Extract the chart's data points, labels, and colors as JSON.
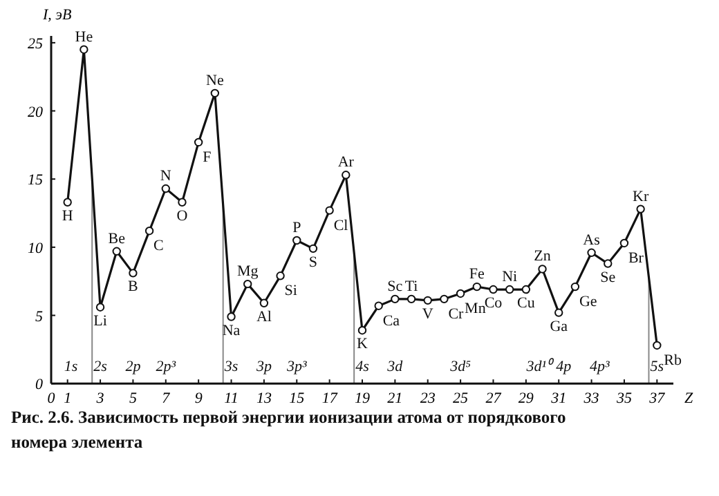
{
  "chart_data": {
    "type": "line",
    "xlabel": "Z",
    "ylabel": "I, эВ",
    "xlim": [
      0,
      38
    ],
    "ylim": [
      0,
      25.5
    ],
    "xticks": [
      0,
      1,
      3,
      5,
      7,
      9,
      11,
      13,
      15,
      17,
      19,
      21,
      23,
      25,
      27,
      29,
      31,
      33,
      35,
      37
    ],
    "yticks": [
      0,
      5,
      10,
      15,
      20,
      25
    ],
    "grid": false,
    "marker": "circle",
    "line_style": "solid",
    "series": [
      {
        "color": "#111111",
        "x": [
          1,
          2,
          3,
          4,
          5,
          6,
          7,
          8,
          9,
          10,
          11,
          12,
          13,
          14,
          15,
          16,
          17,
          18,
          19,
          20,
          21,
          22,
          23,
          24,
          25,
          26,
          27,
          28,
          29,
          30,
          31,
          32,
          33,
          34,
          35,
          36,
          37
        ],
        "values": [
          13.3,
          24.5,
          5.6,
          9.7,
          8.1,
          11.2,
          14.3,
          13.3,
          17.7,
          21.3,
          4.9,
          7.3,
          5.9,
          7.9,
          10.5,
          9.9,
          12.7,
          15.3,
          3.9,
          5.7,
          6.2,
          6.2,
          6.1,
          6.2,
          6.6,
          7.1,
          6.9,
          6.9,
          6.9,
          8.4,
          5.2,
          7.1,
          9.6,
          8.8,
          10.3,
          12.8,
          2.8
        ],
        "value_labels": [
          "H",
          "He",
          "Li",
          "Be",
          "B",
          "C",
          "N",
          "O",
          "F",
          "Ne",
          "Na",
          "Mg",
          "Al",
          "Si",
          "P",
          "S",
          "Cl",
          "Ar",
          "K",
          "Ca",
          "Sc",
          "Ti",
          "V",
          "Cr",
          "Mn",
          "Fe",
          "Co",
          "Ni",
          "Cu",
          "Zn",
          "Ga",
          "Ge",
          "As",
          "Se",
          "Br",
          "Kr",
          "Rb"
        ]
      }
    ],
    "ref_lines": [
      {
        "axis": "x",
        "value": 2.5,
        "color": "#888888"
      },
      {
        "axis": "x",
        "value": 10.5,
        "color": "#888888"
      },
      {
        "axis": "x",
        "value": 18.5,
        "color": "#888888"
      },
      {
        "axis": "x",
        "value": 36.5,
        "color": "#888888"
      }
    ],
    "annotations": [
      "1s",
      "2s",
      "2p",
      "2p³",
      "3s",
      "3p",
      "3p³",
      "4s",
      "3d",
      "3d⁵",
      "3d¹⁰",
      "4p",
      "4p³",
      "5s",
      "Рис. 2.6.  Зависимость первой энергии ионизации атома от порядкового номера элемента"
    ]
  }
}
